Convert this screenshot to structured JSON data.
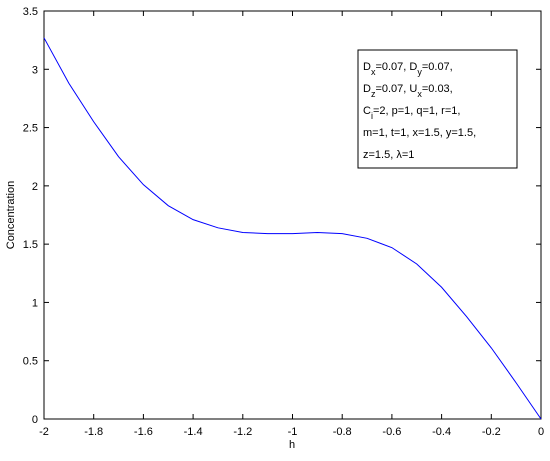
{
  "chart_data": {
    "type": "line",
    "x": [
      -2,
      -1.9,
      -1.8,
      -1.7,
      -1.6,
      -1.5,
      -1.4,
      -1.3,
      -1.2,
      -1.1,
      -1,
      -0.9,
      -0.8,
      -0.7,
      -0.6,
      -0.5,
      -0.4,
      -0.3,
      -0.2,
      -0.1,
      0
    ],
    "series": [
      {
        "color": "#0000ff",
        "values": [
          3.27,
          2.88,
          2.55,
          2.25,
          2.01,
          1.83,
          1.71,
          1.64,
          1.6,
          1.59,
          1.59,
          1.6,
          1.59,
          1.55,
          1.47,
          1.33,
          1.13,
          0.88,
          0.61,
          0.31,
          0
        ]
      }
    ],
    "xlim": [
      -2,
      0
    ],
    "xticks": [
      -2,
      -1.8,
      -1.6,
      -1.4,
      -1.2,
      -1,
      -0.8,
      -0.6,
      -0.4,
      -0.2,
      0
    ],
    "ylim": [
      0,
      3.5
    ],
    "yticks": [
      0,
      0.5,
      1,
      1.5,
      2,
      2.5,
      3,
      3.5
    ],
    "xlabel": "h",
    "ylabel": "Concentration",
    "annotation": [
      [
        "D",
        {
          "sub": "x"
        },
        "=0.07, D",
        {
          "sub": "y"
        },
        "=0.07,"
      ],
      [
        "D",
        {
          "sub": "z"
        },
        "=0.07, U",
        {
          "sub": "x"
        },
        "=0.03,"
      ],
      [
        "C",
        {
          "sub": "i"
        },
        "=2, p=1, q=1, r=1,"
      ],
      [
        "m=1, t=1, x=1.5, y=1.5,"
      ],
      [
        " z=1.5, λ=1"
      ]
    ]
  }
}
